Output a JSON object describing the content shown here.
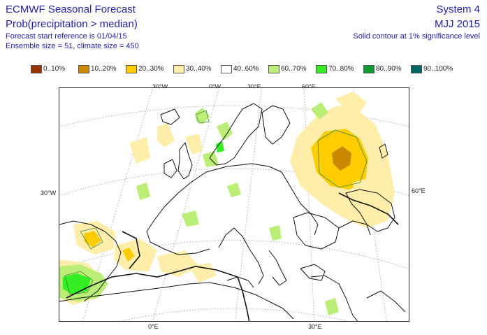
{
  "header": {
    "title": "ECMWF Seasonal Forecast",
    "subtitle": "Prob(precipitation > median)",
    "start_reference": "Forecast start reference is 01/04/15",
    "ensemble": "Ensemble size = 51, climate size = 450",
    "system": "System 4",
    "period": "MJJ 2015",
    "contour_note": "Solid contour at 1% significance level"
  },
  "legend": [
    {
      "label": "0..10%",
      "color": "#993300"
    },
    {
      "label": "10..20%",
      "color": "#cc8800"
    },
    {
      "label": "20..30%",
      "color": "#ffcc00"
    },
    {
      "label": "30..40%",
      "color": "#ffeeaa"
    },
    {
      "label": "40..60%",
      "color": "#ffffff"
    },
    {
      "label": "60..70%",
      "color": "#bbee77"
    },
    {
      "label": "70..80%",
      "color": "#33ee22"
    },
    {
      "label": "80..90%",
      "color": "#119933"
    },
    {
      "label": "90..100%",
      "color": "#006666"
    }
  ],
  "axes": {
    "top": [
      "30°W",
      "0°W",
      "30°E",
      "60°E"
    ],
    "left": "30°W",
    "right": "60°E",
    "bottom": [
      "0°E",
      "30°E"
    ]
  }
}
